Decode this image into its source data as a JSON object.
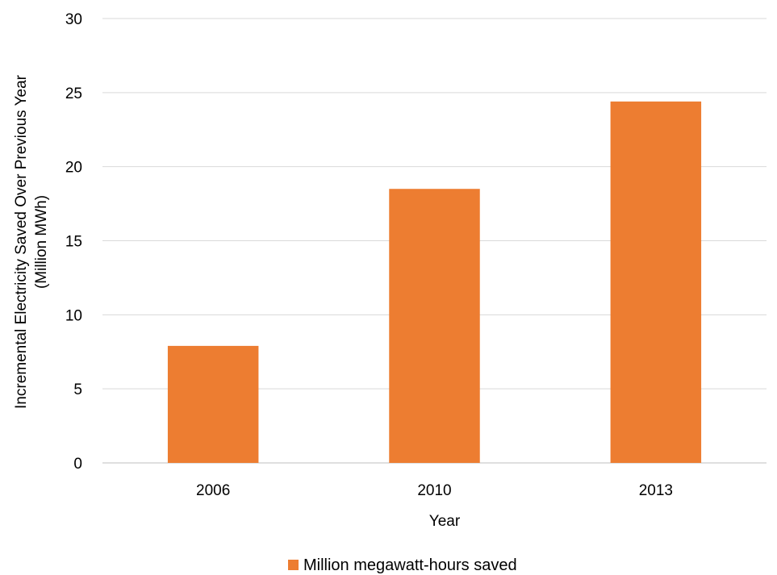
{
  "chart_data": {
    "type": "bar",
    "title": "",
    "xlabel": "Year",
    "ylabel": "Incremental Electricity Saved Over Previous Year",
    "ylabel_line2": "(Million MWh)",
    "categories": [
      "2006",
      "2010",
      "2013"
    ],
    "series": [
      {
        "name": "Million megawatt-hours saved",
        "values": [
          7.9,
          18.5,
          24.4
        ],
        "color": "#ed7d31"
      }
    ],
    "ylim": [
      0,
      30
    ],
    "yticks": [
      0,
      5,
      10,
      15,
      20,
      25,
      30
    ],
    "grid": true,
    "legend": "bottom-center"
  }
}
